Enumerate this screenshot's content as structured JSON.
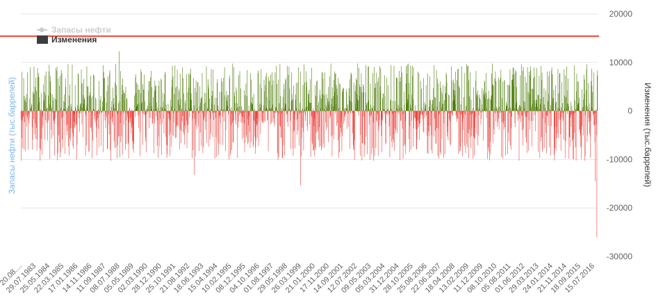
{
  "chart_data": {
    "type": "bar",
    "series": [
      {
        "name": "Запасы нефти",
        "color": "#c8c8c8",
        "line_color": "#f44a3c",
        "hidden_in_legend": true,
        "y_axis": "left",
        "values_level": [
          15400,
          15400
        ]
      },
      {
        "name": "Изменения",
        "color": "#3d3d3d",
        "positive_color": "#4a7a04",
        "negative_color": "#e8403a",
        "y_axis": "right"
      }
    ],
    "y_right": {
      "label": "Изменения (тыс.баррелей)",
      "ticks": [
        20000,
        10000,
        0,
        -10000,
        -20000,
        -30000
      ],
      "ylim": [
        -30000,
        20000
      ]
    },
    "y_left": {
      "label": "Запасы нефти (тыс.баррелей)"
    },
    "x_ticks": [
      "20.08....",
      "29.07.1983",
      "25.05.1984",
      "22.03.1985",
      "17.01.1986",
      "14.11.1986",
      "11.09.1987",
      "08.07.1988",
      "05.05.1989",
      "02.03.1990",
      "28.12.1990",
      "25.10.1991",
      "21.08.1992",
      "18.06.1993",
      "15.04.1994",
      "10.02.1995",
      "08.12.1995",
      "04.10.1996",
      "01.08.1997",
      "29.05.1998",
      "26.03.1999",
      "21.01.2000",
      "17.11.2000",
      "14.09.2001",
      "12.07.2002",
      "09.05.2003",
      "05.03.2004",
      "31.12.2004",
      "28.10.2005",
      "25.08.2006",
      "22.06.2007",
      "18.04.2008",
      "13.02.2009",
      "11.12.2009",
      "08.10.2010",
      "05.08.2011",
      "01.06.2012",
      "29.03.2013",
      "24.01.2014",
      "21.11.2014",
      "18.09.2015",
      "15.07.2016"
    ],
    "bar_count": 1780,
    "notable_values": {
      "min": -26000,
      "max": 12300,
      "second_min": -15300
    },
    "grid": true,
    "legend_position": "top-left"
  }
}
